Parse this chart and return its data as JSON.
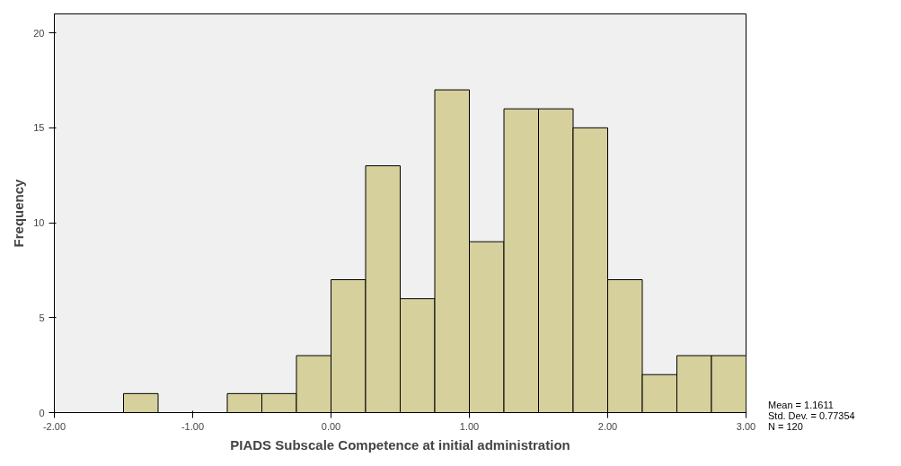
{
  "chart_data": {
    "type": "histogram",
    "xlabel": "PIADS Subscale Competence at initial administration",
    "ylabel": "Frequency",
    "bins": [
      -2,
      -1.75,
      -1.5,
      -1.25,
      -1,
      -0.75,
      -0.5,
      -0.25,
      0,
      0.25,
      0.5,
      0.75,
      1,
      1.25,
      1.5,
      1.75,
      2,
      2.25,
      2.5,
      2.75,
      3
    ],
    "values": [
      0,
      0,
      1,
      0,
      0,
      1,
      1,
      3,
      7,
      13,
      6,
      17,
      9,
      16,
      16,
      15,
      7,
      2,
      3,
      3
    ],
    "color": "#d6d09c",
    "xlim": [
      -2,
      3
    ],
    "ylim": [
      0,
      21
    ],
    "xticks": [
      {
        "value": -2,
        "label": "-2.00"
      },
      {
        "value": -1,
        "label": "-1.00"
      },
      {
        "value": 0,
        "label": "0.00"
      },
      {
        "value": 1,
        "label": "1.00"
      },
      {
        "value": 2,
        "label": "2.00"
      },
      {
        "value": 3,
        "label": "3.00"
      }
    ],
    "yticks": [
      0,
      5,
      10,
      15,
      20
    ],
    "grid": false,
    "annotations": [
      "Mean = 1.1611",
      "Std. Dev. = 0.77354",
      "N = 120"
    ]
  }
}
